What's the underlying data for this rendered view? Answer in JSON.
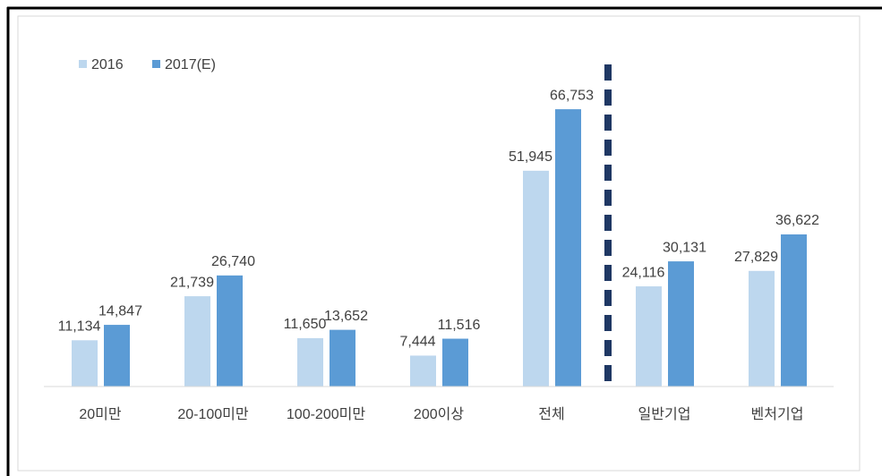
{
  "chart_data": {
    "type": "bar",
    "categories": [
      "20미만",
      "20-100미만",
      "100-200미만",
      "200이상",
      "전체",
      "일반기업",
      "벤처기업"
    ],
    "series": [
      {
        "name": "2016",
        "color": "#bdd7ee",
        "values": [
          11134,
          21739,
          11650,
          7444,
          51945,
          24116,
          27829
        ],
        "value_labels": [
          "11,134",
          "21,739",
          "11,650",
          "7,444",
          "51,945",
          "24,116",
          "27,829"
        ]
      },
      {
        "name": "2017(E)",
        "color": "#5b9bd5",
        "values": [
          14847,
          26740,
          13652,
          11516,
          66753,
          30131,
          36622
        ],
        "value_labels": [
          "14,847",
          "26,740",
          "13,652",
          "11,516",
          "66,753",
          "30,131",
          "36,622"
        ]
      }
    ],
    "ylim": [
      0,
      70000
    ]
  }
}
